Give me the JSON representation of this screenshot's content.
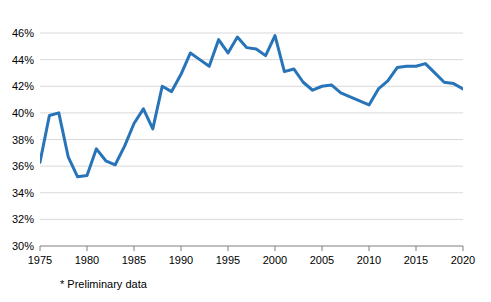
{
  "chart_data": {
    "type": "line",
    "x": [
      1975,
      1976,
      1977,
      1978,
      1979,
      1980,
      1981,
      1982,
      1983,
      1984,
      1985,
      1986,
      1987,
      1988,
      1989,
      1990,
      1991,
      1992,
      1993,
      1994,
      1995,
      1996,
      1997,
      1998,
      1999,
      2000,
      2001,
      2002,
      2003,
      2004,
      2005,
      2006,
      2007,
      2008,
      2009,
      2010,
      2011,
      2012,
      2013,
      2014,
      2015,
      2016,
      2017,
      2018,
      2019,
      2020
    ],
    "values": [
      36.3,
      39.8,
      40.0,
      36.7,
      35.2,
      35.3,
      37.3,
      36.4,
      36.1,
      37.5,
      39.2,
      40.3,
      38.8,
      42.0,
      41.6,
      42.9,
      44.5,
      44.0,
      43.5,
      45.5,
      44.5,
      45.7,
      44.9,
      44.8,
      44.3,
      45.8,
      43.1,
      43.3,
      42.3,
      41.7,
      42.0,
      42.1,
      41.5,
      41.2,
      40.9,
      40.6,
      41.8,
      42.4,
      43.4,
      43.5,
      43.5,
      43.7,
      43.0,
      42.3,
      42.2,
      41.8
    ],
    "color": "#2774b8",
    "xlim": [
      1975,
      2020
    ],
    "xticks": [
      1975,
      1980,
      1985,
      1990,
      1995,
      2000,
      2005,
      2010,
      2015,
      2020
    ],
    "ylim": [
      30,
      46
    ],
    "yticks": [
      {
        "value": 30,
        "label": "30%"
      },
      {
        "value": 32,
        "label": "32%"
      },
      {
        "value": 34,
        "label": "34%"
      },
      {
        "value": 36,
        "label": "36%"
      },
      {
        "value": 38,
        "label": "38%"
      },
      {
        "value": 40,
        "label": "40%"
      },
      {
        "value": 42,
        "label": "42%"
      },
      {
        "value": 44,
        "label": "44%"
      },
      {
        "value": 46,
        "label": "46%"
      }
    ],
    "grid": true,
    "annotations": [
      "* Preliminary data"
    ]
  }
}
